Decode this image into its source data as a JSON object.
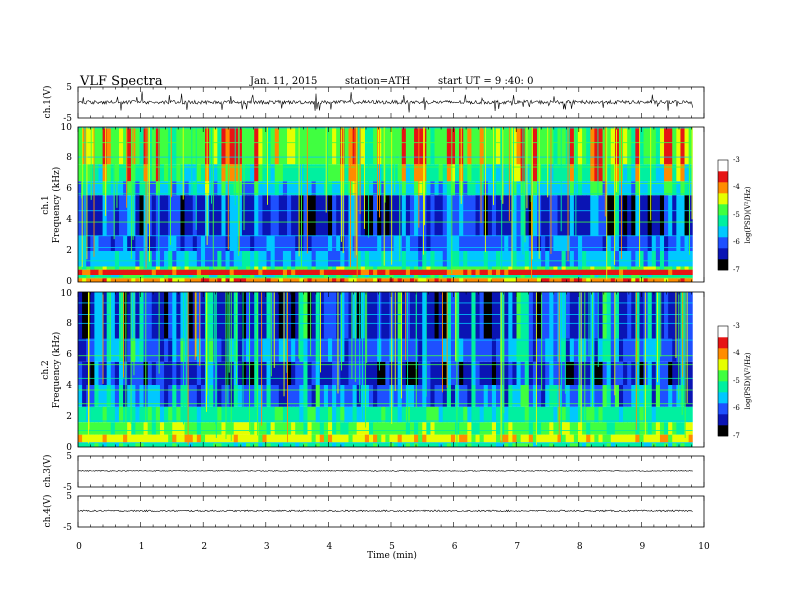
{
  "header": {
    "title": "VLF Spectra",
    "date": "Jan. 11, 2015",
    "station": "station=ATH",
    "start": "start UT =  9 :40: 0"
  },
  "chart_data": [
    {
      "type": "line",
      "panel": "ch1-waveform",
      "ylabel": "ch.1(V)",
      "ylim": [
        -5,
        5
      ],
      "y_ticks": [
        "5",
        "-5"
      ],
      "baseline_v": 0.1,
      "noise_v": 0.6,
      "spike_v": 1.5
    },
    {
      "type": "heatmap",
      "panel": "ch1-spectrogram",
      "ylabel": [
        "ch.1",
        "Frequency (kHz)"
      ],
      "ylim": [
        0,
        10
      ],
      "y_ticks": [
        "0",
        "2",
        "4",
        "6",
        "8",
        "10"
      ],
      "colorbar": {
        "label": "log(PSD)(V²/Hz)",
        "range": [
          -7,
          -3
        ],
        "ticks": [
          "-3",
          "-4",
          "-5",
          "-6",
          "-7"
        ],
        "colors": [
          "#000000",
          "#0a14b4",
          "#1e50ff",
          "#00c8ff",
          "#00f0a0",
          "#40ff40",
          "#e6ff00",
          "#ff8c00",
          "#e61414",
          "#ffffff"
        ]
      },
      "bands": [
        {
          "f0": 0.0,
          "f1": 0.25,
          "level": 7
        },
        {
          "f0": 0.25,
          "f1": 0.45,
          "level": 4
        },
        {
          "f0": 0.45,
          "f1": 0.8,
          "level": 8
        },
        {
          "f0": 0.8,
          "f1": 1.0,
          "level": 5
        },
        {
          "f0": 1.0,
          "f1": 2.0,
          "level": 3
        },
        {
          "f0": 2.0,
          "f1": 3.0,
          "level": 2
        },
        {
          "f0": 3.0,
          "f1": 5.6,
          "level": 1
        },
        {
          "f0": 5.6,
          "f1": 6.5,
          "level": 3
        },
        {
          "f0": 6.5,
          "f1": 7.6,
          "level": 4
        },
        {
          "f0": 7.6,
          "f1": 10.0,
          "level": 5
        }
      ]
    },
    {
      "type": "heatmap",
      "panel": "ch2-spectrogram",
      "ylabel": [
        "ch.2",
        "Frequency (kHz)"
      ],
      "ylim": [
        0,
        10
      ],
      "y_ticks": [
        "0",
        "2",
        "4",
        "6",
        "8",
        "10"
      ],
      "colorbar": {
        "label": "log(PSD)(V²/Hz)",
        "range": [
          -7,
          -3
        ],
        "ticks": [
          "-3",
          "-4",
          "-5",
          "-6",
          "-7"
        ]
      },
      "bands": [
        {
          "f0": 0.0,
          "f1": 0.3,
          "level": 4
        },
        {
          "f0": 0.3,
          "f1": 0.8,
          "level": 6
        },
        {
          "f0": 0.8,
          "f1": 1.6,
          "level": 5
        },
        {
          "f0": 1.6,
          "f1": 2.6,
          "level": 4
        },
        {
          "f0": 2.6,
          "f1": 4.0,
          "level": 2
        },
        {
          "f0": 4.0,
          "f1": 5.5,
          "level": 1
        },
        {
          "f0": 5.5,
          "f1": 7.0,
          "level": 2
        },
        {
          "f0": 7.0,
          "f1": 10.0,
          "level": 1
        }
      ]
    },
    {
      "type": "line",
      "panel": "ch3-waveform",
      "ylabel": "ch.3(V)",
      "ylim": [
        -5,
        5
      ],
      "y_ticks": [
        "5",
        "-5"
      ],
      "baseline_v": 0.2,
      "noise_v": 0.15,
      "spike_v": 0
    },
    {
      "type": "line",
      "panel": "ch4-waveform",
      "ylabel": "ch.4(V)",
      "ylim": [
        -5,
        5
      ],
      "y_ticks": [
        "5",
        "-5"
      ],
      "baseline_v": 0.2,
      "noise_v": 0.25,
      "spike_v": 0
    }
  ],
  "x_axis": {
    "label": "Time (min)",
    "range": [
      0,
      10
    ],
    "data_end": 9.82,
    "ticks": [
      "0",
      "1",
      "2",
      "3",
      "4",
      "5",
      "6",
      "7",
      "8",
      "9",
      "10"
    ]
  }
}
